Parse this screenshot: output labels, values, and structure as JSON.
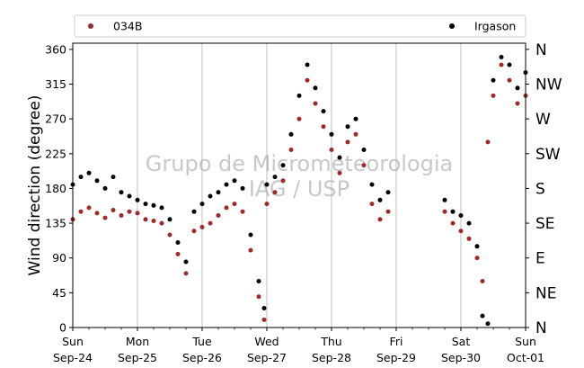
{
  "chart_data": {
    "type": "scatter",
    "ylabel": "Wind direction (degree)",
    "ylim": [
      0,
      368
    ],
    "yticks": [
      0,
      45,
      90,
      135,
      180,
      225,
      270,
      315,
      360
    ],
    "right_axis_labels": [
      {
        "value": 0,
        "label": "N"
      },
      {
        "value": 45,
        "label": "NE"
      },
      {
        "value": 90,
        "label": "E"
      },
      {
        "value": 135,
        "label": "SE"
      },
      {
        "value": 180,
        "label": "S"
      },
      {
        "value": 225,
        "label": "SW"
      },
      {
        "value": 270,
        "label": "W"
      },
      {
        "value": 315,
        "label": "NW"
      },
      {
        "value": 360,
        "label": "N"
      }
    ],
    "xlim": [
      "2023-09-24",
      "2023-10-01"
    ],
    "xticks": [
      {
        "day": "Sun",
        "date": "Sep-24"
      },
      {
        "day": "Mon",
        "date": "Sep-25"
      },
      {
        "day": "Tue",
        "date": "Sep-26"
      },
      {
        "day": "Wed",
        "date": "Sep-27"
      },
      {
        "day": "Thu",
        "date": "Sep-28"
      },
      {
        "day": "Fri",
        "date": "Sep-29"
      },
      {
        "day": "Sat",
        "date": "Sep-30"
      },
      {
        "day": "Sun",
        "date": "Oct-01"
      }
    ],
    "grid": "x-major",
    "legend": {
      "placement": "top",
      "entries": [
        "034B",
        "Irgason"
      ]
    },
    "watermark": [
      "Grupo de Micrometeorologia",
      "IAG / USP"
    ],
    "series": [
      {
        "name": "034B",
        "color": "#9e2a2b",
        "points": [
          {
            "x": "2023-09-24 00:00",
            "y": 140
          },
          {
            "x": "2023-09-24 03:00",
            "y": 150
          },
          {
            "x": "2023-09-24 06:00",
            "y": 155
          },
          {
            "x": "2023-09-24 09:00",
            "y": 148
          },
          {
            "x": "2023-09-24 12:00",
            "y": 142
          },
          {
            "x": "2023-09-24 15:00",
            "y": 152
          },
          {
            "x": "2023-09-24 18:00",
            "y": 145
          },
          {
            "x": "2023-09-24 21:00",
            "y": 150
          },
          {
            "x": "2023-09-25 00:00",
            "y": 148
          },
          {
            "x": "2023-09-25 03:00",
            "y": 140
          },
          {
            "x": "2023-09-25 06:00",
            "y": 138
          },
          {
            "x": "2023-09-25 09:00",
            "y": 135
          },
          {
            "x": "2023-09-25 12:00",
            "y": 120
          },
          {
            "x": "2023-09-25 15:00",
            "y": 95
          },
          {
            "x": "2023-09-25 18:00",
            "y": 70
          },
          {
            "x": "2023-09-25 21:00",
            "y": 125
          },
          {
            "x": "2023-09-26 00:00",
            "y": 130
          },
          {
            "x": "2023-09-26 03:00",
            "y": 135
          },
          {
            "x": "2023-09-26 06:00",
            "y": 145
          },
          {
            "x": "2023-09-26 09:00",
            "y": 155
          },
          {
            "x": "2023-09-26 12:00",
            "y": 160
          },
          {
            "x": "2023-09-26 15:00",
            "y": 150
          },
          {
            "x": "2023-09-26 18:00",
            "y": 100
          },
          {
            "x": "2023-09-26 21:00",
            "y": 40
          },
          {
            "x": "2023-09-26 23:00",
            "y": 10
          },
          {
            "x": "2023-09-27 00:00",
            "y": 160
          },
          {
            "x": "2023-09-27 03:00",
            "y": 175
          },
          {
            "x": "2023-09-27 06:00",
            "y": 190
          },
          {
            "x": "2023-09-27 09:00",
            "y": 230
          },
          {
            "x": "2023-09-27 12:00",
            "y": 270
          },
          {
            "x": "2023-09-27 15:00",
            "y": 320
          },
          {
            "x": "2023-09-27 18:00",
            "y": 290
          },
          {
            "x": "2023-09-27 21:00",
            "y": 260
          },
          {
            "x": "2023-09-28 00:00",
            "y": 230
          },
          {
            "x": "2023-09-28 03:00",
            "y": 200
          },
          {
            "x": "2023-09-28 06:00",
            "y": 240
          },
          {
            "x": "2023-09-28 09:00",
            "y": 250
          },
          {
            "x": "2023-09-28 12:00",
            "y": 210
          },
          {
            "x": "2023-09-28 15:00",
            "y": 160
          },
          {
            "x": "2023-09-28 18:00",
            "y": 140
          },
          {
            "x": "2023-09-28 21:00",
            "y": 150
          },
          {
            "x": "2023-09-29 18:00",
            "y": 150
          },
          {
            "x": "2023-09-29 21:00",
            "y": 135
          },
          {
            "x": "2023-09-30 00:00",
            "y": 125
          },
          {
            "x": "2023-09-30 03:00",
            "y": 115
          },
          {
            "x": "2023-09-30 06:00",
            "y": 90
          },
          {
            "x": "2023-09-30 08:00",
            "y": 60
          },
          {
            "x": "2023-09-30 10:00",
            "y": 240
          },
          {
            "x": "2023-09-30 12:00",
            "y": 300
          },
          {
            "x": "2023-09-30 15:00",
            "y": 340
          },
          {
            "x": "2023-09-30 18:00",
            "y": 320
          },
          {
            "x": "2023-09-30 21:00",
            "y": 290
          },
          {
            "x": "2023-10-01 00:00",
            "y": 300
          }
        ]
      },
      {
        "name": "Irgason",
        "color": "#000000",
        "points": [
          {
            "x": "2023-09-24 00:00",
            "y": 185
          },
          {
            "x": "2023-09-24 03:00",
            "y": 195
          },
          {
            "x": "2023-09-24 06:00",
            "y": 200
          },
          {
            "x": "2023-09-24 09:00",
            "y": 190
          },
          {
            "x": "2023-09-24 12:00",
            "y": 180
          },
          {
            "x": "2023-09-24 15:00",
            "y": 195
          },
          {
            "x": "2023-09-24 18:00",
            "y": 175
          },
          {
            "x": "2023-09-24 21:00",
            "y": 170
          },
          {
            "x": "2023-09-25 00:00",
            "y": 165
          },
          {
            "x": "2023-09-25 03:00",
            "y": 160
          },
          {
            "x": "2023-09-25 06:00",
            "y": 158
          },
          {
            "x": "2023-09-25 09:00",
            "y": 155
          },
          {
            "x": "2023-09-25 12:00",
            "y": 140
          },
          {
            "x": "2023-09-25 15:00",
            "y": 110
          },
          {
            "x": "2023-09-25 18:00",
            "y": 85
          },
          {
            "x": "2023-09-25 21:00",
            "y": 150
          },
          {
            "x": "2023-09-26 00:00",
            "y": 160
          },
          {
            "x": "2023-09-26 03:00",
            "y": 170
          },
          {
            "x": "2023-09-26 06:00",
            "y": 175
          },
          {
            "x": "2023-09-26 09:00",
            "y": 185
          },
          {
            "x": "2023-09-26 12:00",
            "y": 190
          },
          {
            "x": "2023-09-26 15:00",
            "y": 180
          },
          {
            "x": "2023-09-26 18:00",
            "y": 120
          },
          {
            "x": "2023-09-26 21:00",
            "y": 60
          },
          {
            "x": "2023-09-26 23:00",
            "y": 25
          },
          {
            "x": "2023-09-27 00:00",
            "y": 185
          },
          {
            "x": "2023-09-27 03:00",
            "y": 195
          },
          {
            "x": "2023-09-27 06:00",
            "y": 210
          },
          {
            "x": "2023-09-27 09:00",
            "y": 250
          },
          {
            "x": "2023-09-27 12:00",
            "y": 300
          },
          {
            "x": "2023-09-27 15:00",
            "y": 340
          },
          {
            "x": "2023-09-27 18:00",
            "y": 310
          },
          {
            "x": "2023-09-27 21:00",
            "y": 280
          },
          {
            "x": "2023-09-28 00:00",
            "y": 250
          },
          {
            "x": "2023-09-28 03:00",
            "y": 220
          },
          {
            "x": "2023-09-28 06:00",
            "y": 260
          },
          {
            "x": "2023-09-28 09:00",
            "y": 270
          },
          {
            "x": "2023-09-28 12:00",
            "y": 230
          },
          {
            "x": "2023-09-28 15:00",
            "y": 185
          },
          {
            "x": "2023-09-28 18:00",
            "y": 165
          },
          {
            "x": "2023-09-28 21:00",
            "y": 175
          },
          {
            "x": "2023-09-29 18:00",
            "y": 165
          },
          {
            "x": "2023-09-29 21:00",
            "y": 150
          },
          {
            "x": "2023-09-30 00:00",
            "y": 145
          },
          {
            "x": "2023-09-30 03:00",
            "y": 135
          },
          {
            "x": "2023-09-30 06:00",
            "y": 105
          },
          {
            "x": "2023-09-30 08:00",
            "y": 15
          },
          {
            "x": "2023-09-30 10:00",
            "y": 5
          },
          {
            "x": "2023-09-30 12:00",
            "y": 320
          },
          {
            "x": "2023-09-30 15:00",
            "y": 350
          },
          {
            "x": "2023-09-30 18:00",
            "y": 340
          },
          {
            "x": "2023-09-30 21:00",
            "y": 310
          },
          {
            "x": "2023-10-01 00:00",
            "y": 330
          }
        ]
      }
    ]
  }
}
